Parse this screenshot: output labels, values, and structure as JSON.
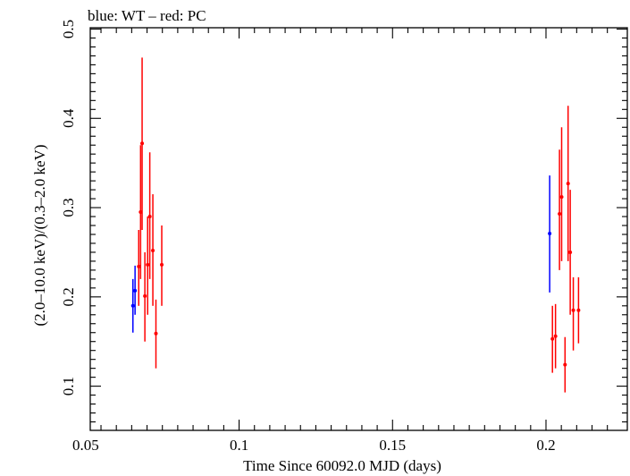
{
  "chart_data": {
    "type": "scatter",
    "title": "blue: WT – red: PC",
    "xlabel": "Time Since 60092.0 MJD (days)",
    "ylabel": "(2.0–10.0 keV)/(0.3–2.0 keV)",
    "xlim": [
      0.0515,
      0.2265
    ],
    "ylim": [
      0.0505,
      0.5015
    ],
    "xticks": [
      0.05,
      0.1,
      0.15,
      0.2
    ],
    "xtick_labels": [
      "0.05",
      "0.1",
      "0.15",
      "0.2"
    ],
    "yticks": [
      0.1,
      0.2,
      0.3,
      0.4,
      0.5
    ],
    "ytick_labels": [
      "0.1",
      "0.2",
      "0.3",
      "0.4",
      "0.5"
    ],
    "grid": false,
    "legend": "none",
    "series": [
      {
        "name": "WT",
        "color": "#0000ff",
        "points": [
          {
            "x": 0.0654,
            "xerr": 0.0003,
            "y": 0.19,
            "ylo": 0.16,
            "yhi": 0.22
          },
          {
            "x": 0.0661,
            "xerr": 0.0003,
            "y": 0.207,
            "ylo": 0.18,
            "yhi": 0.235
          },
          {
            "x": 0.2012,
            "xerr": 0.0002,
            "y": 0.271,
            "ylo": 0.205,
            "yhi": 0.336
          }
        ]
      },
      {
        "name": "PC",
        "color": "#ff0000",
        "points": [
          {
            "x": 0.0673,
            "xerr": 0.0003,
            "y": 0.234,
            "ylo": 0.19,
            "yhi": 0.275
          },
          {
            "x": 0.0679,
            "xerr": 0.0003,
            "y": 0.295,
            "ylo": 0.22,
            "yhi": 0.37
          },
          {
            "x": 0.0684,
            "xerr": 0.0003,
            "y": 0.372,
            "ylo": 0.275,
            "yhi": 0.468
          },
          {
            "x": 0.0693,
            "xerr": 0.0003,
            "y": 0.201,
            "ylo": 0.15,
            "yhi": 0.25
          },
          {
            "x": 0.0702,
            "xerr": 0.0003,
            "y": 0.236,
            "ylo": 0.18,
            "yhi": 0.29
          },
          {
            "x": 0.0709,
            "xerr": 0.0003,
            "y": 0.29,
            "ylo": 0.22,
            "yhi": 0.362
          },
          {
            "x": 0.0719,
            "xerr": 0.0003,
            "y": 0.252,
            "ylo": 0.19,
            "yhi": 0.315
          },
          {
            "x": 0.0729,
            "xerr": 0.0003,
            "y": 0.159,
            "ylo": 0.12,
            "yhi": 0.197
          },
          {
            "x": 0.0748,
            "xerr": 0.0004,
            "y": 0.236,
            "ylo": 0.19,
            "yhi": 0.28
          },
          {
            "x": 0.2021,
            "xerr": 0.0003,
            "y": 0.153,
            "ylo": 0.115,
            "yhi": 0.19
          },
          {
            "x": 0.2031,
            "xerr": 0.0003,
            "y": 0.156,
            "ylo": 0.12,
            "yhi": 0.192
          },
          {
            "x": 0.2044,
            "xerr": 0.0003,
            "y": 0.293,
            "ylo": 0.23,
            "yhi": 0.365
          },
          {
            "x": 0.2051,
            "xerr": 0.0003,
            "y": 0.312,
            "ylo": 0.24,
            "yhi": 0.39
          },
          {
            "x": 0.2062,
            "xerr": 0.0003,
            "y": 0.124,
            "ylo": 0.093,
            "yhi": 0.155
          },
          {
            "x": 0.2072,
            "xerr": 0.0003,
            "y": 0.327,
            "ylo": 0.24,
            "yhi": 0.414
          },
          {
            "x": 0.2079,
            "xerr": 0.0003,
            "y": 0.25,
            "ylo": 0.18,
            "yhi": 0.32
          },
          {
            "x": 0.2089,
            "xerr": 0.0004,
            "y": 0.185,
            "ylo": 0.14,
            "yhi": 0.222
          },
          {
            "x": 0.2106,
            "xerr": 0.0004,
            "y": 0.185,
            "ylo": 0.148,
            "yhi": 0.222
          }
        ]
      }
    ]
  }
}
